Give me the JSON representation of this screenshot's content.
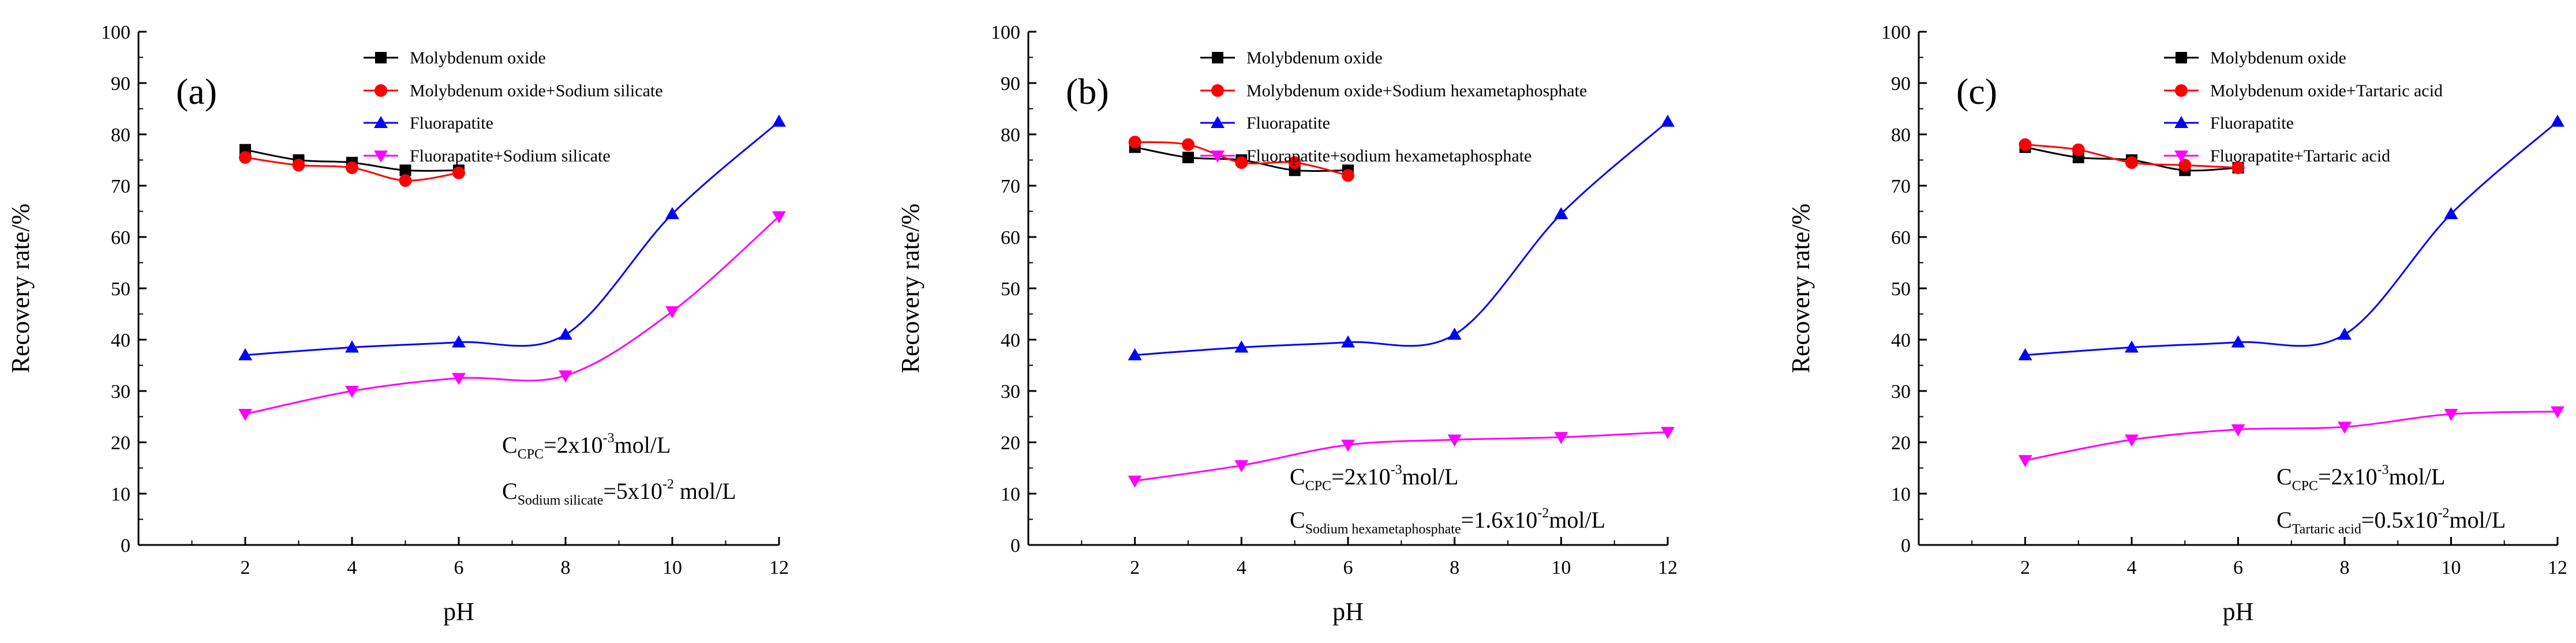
{
  "chart_data": [
    {
      "type": "line",
      "panel_label": "(a)",
      "xlabel": "pH",
      "ylabel": "Recovery rate/%",
      "xlim": [
        0,
        12
      ],
      "ylim": [
        0,
        100
      ],
      "xticks": [
        "2",
        "4",
        "6",
        "8",
        "10",
        "12"
      ],
      "yticks": [
        "0",
        "10",
        "20",
        "30",
        "40",
        "50",
        "60",
        "70",
        "80",
        "90",
        "100"
      ],
      "legend_position": "top-right",
      "series": [
        {
          "name": "Molybdenum oxide",
          "color": "#000000",
          "marker": "square",
          "x": [
            2,
            3,
            4,
            5,
            6
          ],
          "y": [
            77,
            75,
            74.5,
            73,
            73
          ]
        },
        {
          "name": "Molybdenum oxide+Sodium silicate",
          "color": "#ff0000",
          "marker": "circle",
          "x": [
            2,
            3,
            4,
            5,
            6
          ],
          "y": [
            75.5,
            74,
            73.5,
            71,
            72.5
          ]
        },
        {
          "name": "Fluorapatite",
          "color": "#0000ff",
          "marker": "triangle-up",
          "x": [
            2,
            4,
            6,
            8,
            10,
            12
          ],
          "y": [
            37,
            38.5,
            39.5,
            41,
            64.5,
            82.5
          ]
        },
        {
          "name": "Fluorapatite+Sodium silicate",
          "color": "#ff00ff",
          "marker": "triangle-down",
          "x": [
            2,
            4,
            6,
            8,
            10,
            12
          ],
          "y": [
            25.5,
            30,
            32.5,
            33,
            45.5,
            64
          ]
        }
      ],
      "annotation": {
        "line1": {
          "main": "C",
          "sub": "CPC",
          "mid": "=2x10",
          "sup": "-3",
          "tail": "mol/L"
        },
        "line2": {
          "main": "C",
          "sub": "Sodium silicate",
          "mid": "=5x10",
          "sup": "-2",
          "tail": " mol/L"
        }
      }
    },
    {
      "type": "line",
      "panel_label": "(b)",
      "xlabel": "pH",
      "ylabel": "Recovery rate/%",
      "xlim": [
        0,
        12
      ],
      "ylim": [
        0,
        100
      ],
      "xticks": [
        "2",
        "4",
        "6",
        "8",
        "10",
        "12"
      ],
      "yticks": [
        "0",
        "10",
        "20",
        "30",
        "40",
        "50",
        "60",
        "70",
        "80",
        "90",
        "100"
      ],
      "legend_position": "top-right",
      "series": [
        {
          "name": "Molybdenum oxide",
          "color": "#000000",
          "marker": "square",
          "x": [
            2,
            3,
            4,
            5,
            6
          ],
          "y": [
            77.5,
            75.5,
            75,
            73,
            73
          ]
        },
        {
          "name": "Molybdenum oxide+Sodium hexametaphosphate",
          "color": "#ff0000",
          "marker": "circle",
          "x": [
            2,
            3,
            4,
            5,
            6
          ],
          "y": [
            78.5,
            78,
            74.5,
            74.5,
            72
          ]
        },
        {
          "name": "Fluorapatite",
          "color": "#0000ff",
          "marker": "triangle-up",
          "x": [
            2,
            4,
            6,
            8,
            10,
            12
          ],
          "y": [
            37,
            38.5,
            39.5,
            41,
            64.5,
            82.5
          ]
        },
        {
          "name": "Fluorapatite+sodium hexametaphosphate",
          "color": "#ff00ff",
          "marker": "triangle-down",
          "x": [
            2,
            4,
            6,
            8,
            10,
            12
          ],
          "y": [
            12.5,
            15.5,
            19.5,
            20.5,
            21,
            22
          ]
        }
      ],
      "annotation": {
        "line1": {
          "main": "C",
          "sub": "CPC",
          "mid": "=2x10",
          "sup": "-3",
          "tail": "mol/L"
        },
        "line2": {
          "main": "C",
          "sub": "Sodium hexametaphosphate",
          "mid": "=1.6x10",
          "sup": "-2",
          "tail": "mol/L"
        }
      }
    },
    {
      "type": "line",
      "panel_label": "(c)",
      "xlabel": "pH",
      "ylabel": "Recovery rate/%",
      "xlim": [
        0,
        12
      ],
      "ylim": [
        0,
        100
      ],
      "xticks": [
        "2",
        "4",
        "6",
        "8",
        "10",
        "12"
      ],
      "yticks": [
        "0",
        "10",
        "20",
        "30",
        "40",
        "50",
        "60",
        "70",
        "80",
        "90",
        "100"
      ],
      "legend_position": "top-right",
      "series": [
        {
          "name": "Molybdenum oxide",
          "color": "#000000",
          "marker": "square",
          "x": [
            2,
            3,
            4,
            5,
            6
          ],
          "y": [
            77.5,
            75.5,
            75,
            73,
            73.5
          ]
        },
        {
          "name": "Molybdenum oxide+Tartaric acid",
          "color": "#ff0000",
          "marker": "circle",
          "x": [
            2,
            3,
            4,
            5,
            6
          ],
          "y": [
            78,
            77,
            74.5,
            74,
            73.5
          ]
        },
        {
          "name": "Fluorapatite",
          "color": "#0000ff",
          "marker": "triangle-up",
          "x": [
            2,
            4,
            6,
            8,
            10,
            12
          ],
          "y": [
            37,
            38.5,
            39.5,
            41,
            64.5,
            82.5
          ]
        },
        {
          "name": "Fluorapatite+Tartaric acid",
          "color": "#ff00ff",
          "marker": "triangle-down",
          "x": [
            2,
            4,
            6,
            8,
            10,
            12
          ],
          "y": [
            16.5,
            20.5,
            22.5,
            23,
            25.5,
            26
          ]
        }
      ],
      "annotation": {
        "line1": {
          "main": "C",
          "sub": "CPC",
          "mid": "=2x10",
          "sup": "-3",
          "tail": "mol/L"
        },
        "line2": {
          "main": "C",
          "sub": "Tartaric acid",
          "mid": "=0.5x10",
          "sup": "-2",
          "tail": "mol/L"
        }
      }
    }
  ]
}
